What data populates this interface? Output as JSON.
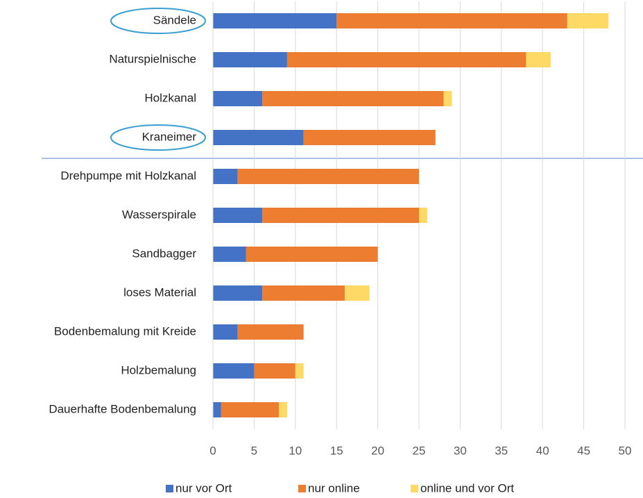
{
  "chart_data": {
    "type": "stacked-barh",
    "categories": [
      "Sändele",
      "Naturspielnische",
      "Holzkanal",
      "Kraneimer",
      "Drehpumpe mit Holzkanal",
      "Wasserspirale",
      "Sandbagger",
      "loses Material",
      "Bodenbemalung mit Kreide",
      "Holzbemalung",
      "Dauerhafte Bodenbemalung"
    ],
    "series": [
      {
        "name": "nur vor Ort",
        "color": "#4472c4",
        "values": [
          15,
          9,
          6,
          11,
          3,
          6,
          4,
          6,
          3,
          5,
          1
        ]
      },
      {
        "name": "nur online",
        "color": "#ed7d31",
        "values": [
          28,
          29,
          22,
          16,
          22,
          19,
          16,
          10,
          8,
          5,
          7
        ]
      },
      {
        "name": "online und vor Ort",
        "color": "#ffd966",
        "values": [
          5,
          3,
          1,
          0,
          0,
          1,
          0,
          3,
          0,
          1,
          1
        ]
      }
    ],
    "xlim": [
      0,
      50
    ],
    "xticks": [
      0,
      5,
      10,
      15,
      20,
      25,
      30,
      35,
      40,
      45,
      50
    ],
    "grid": true,
    "legend": "bottom"
  }
}
